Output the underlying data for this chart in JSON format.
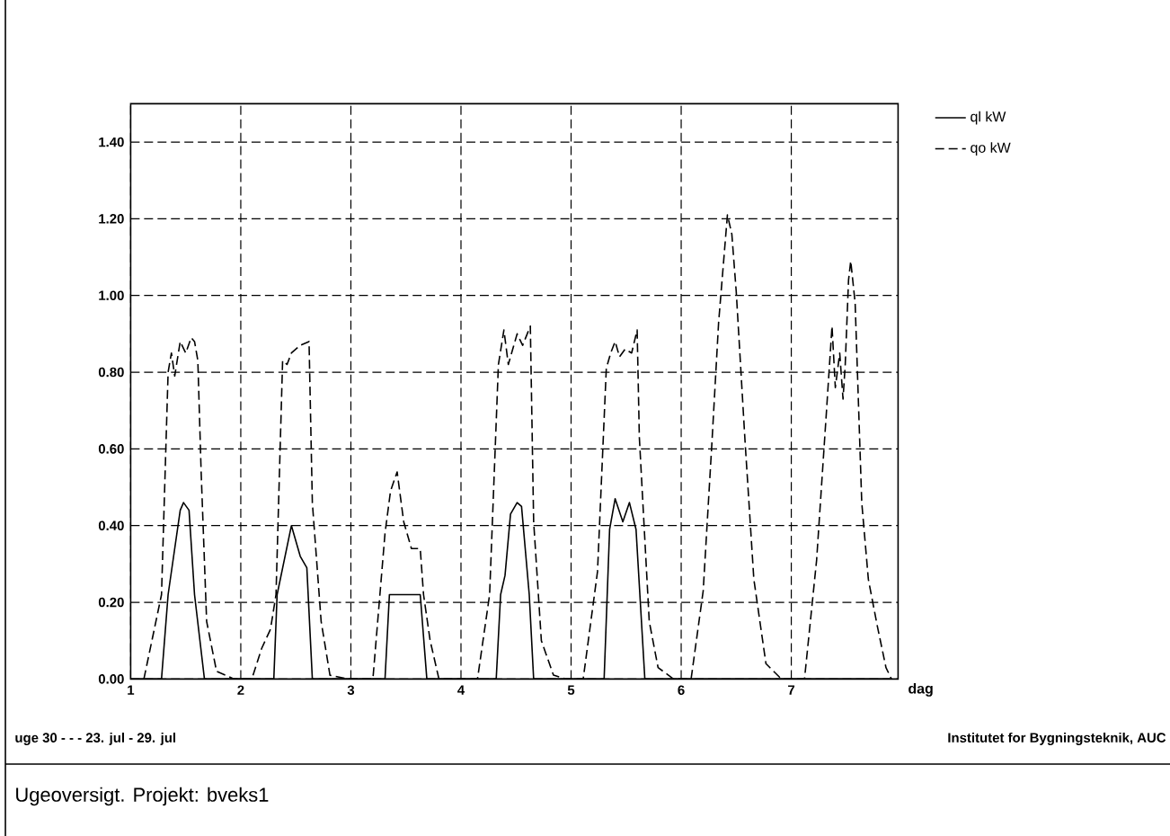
{
  "chart_data": {
    "type": "line",
    "title": "Ugeoversigt. Projekt: bveks1",
    "xlabel": "dag",
    "annotations": [
      "uge 30 - - - 23. jul - 29. jul",
      "Institutet for Bygningsteknik, AUC"
    ],
    "xlim": [
      1,
      7.97
    ],
    "ylim": [
      0,
      1.5
    ],
    "xticks": [
      1,
      2,
      3,
      4,
      5,
      6,
      7
    ],
    "yticks": [
      {
        "value": 0,
        "label": "0.00"
      },
      {
        "value": 0.2,
        "label": "0.20"
      },
      {
        "value": 0.4,
        "label": "0.40"
      },
      {
        "value": 0.6,
        "label": "0.60"
      },
      {
        "value": 0.8,
        "label": "0.80"
      },
      {
        "value": 1.0,
        "label": "1.00"
      },
      {
        "value": 1.2,
        "label": "1.20"
      },
      {
        "value": 1.4,
        "label": "1.40"
      }
    ],
    "grid": true,
    "legend": "top right",
    "marker": "none",
    "series": [
      {
        "name": "ql kW",
        "color": "#000000",
        "line_style": "solid",
        "x": [
          1.0,
          1.28,
          1.34,
          1.45,
          1.48,
          1.53,
          1.58,
          1.67,
          2.3,
          2.33,
          2.46,
          2.54,
          2.6,
          2.65,
          3.31,
          3.35,
          3.63,
          3.69,
          4.32,
          4.36,
          4.4,
          4.45,
          4.51,
          4.55,
          4.62,
          4.66,
          5.3,
          5.35,
          5.4,
          5.47,
          5.53,
          5.59,
          5.67,
          7.9
        ],
        "values": [
          0,
          0,
          0.22,
          0.44,
          0.46,
          0.44,
          0.22,
          0,
          0,
          0.22,
          0.4,
          0.32,
          0.29,
          0,
          0,
          0.22,
          0.22,
          0,
          0,
          0.22,
          0.27,
          0.43,
          0.46,
          0.45,
          0.22,
          0,
          0,
          0.39,
          0.47,
          0.41,
          0.46,
          0.39,
          0,
          0
        ]
      },
      {
        "name": "qo kW",
        "color": "#000000",
        "line_style": "dashed",
        "x": [
          1.12,
          1.28,
          1.34,
          1.37,
          1.4,
          1.45,
          1.5,
          1.55,
          1.58,
          1.61,
          1.64,
          1.69,
          1.78,
          1.94,
          2.1,
          2.19,
          2.27,
          2.32,
          2.38,
          2.42,
          2.46,
          2.54,
          2.62,
          2.65,
          2.73,
          2.81,
          2.98,
          3.2,
          3.31,
          3.36,
          3.42,
          3.48,
          3.55,
          3.63,
          3.66,
          3.72,
          3.8,
          4.15,
          4.26,
          4.34,
          4.39,
          4.43,
          4.51,
          4.56,
          4.63,
          4.66,
          4.73,
          4.84,
          4.95,
          5.11,
          5.24,
          5.32,
          5.36,
          5.4,
          5.44,
          5.49,
          5.55,
          5.6,
          5.62,
          5.71,
          5.79,
          5.93,
          6.09,
          6.2,
          6.28,
          6.34,
          6.42,
          6.46,
          6.5,
          6.58,
          6.66,
          6.77,
          6.91,
          7.12,
          7.23,
          7.32,
          7.37,
          7.4,
          7.44,
          7.47,
          7.49,
          7.52,
          7.54,
          7.58,
          7.64,
          7.7,
          7.78,
          7.86,
          7.91
        ],
        "values": [
          0,
          0.22,
          0.8,
          0.85,
          0.79,
          0.88,
          0.85,
          0.89,
          0.88,
          0.83,
          0.54,
          0.15,
          0.02,
          0,
          0,
          0.08,
          0.13,
          0.22,
          0.83,
          0.82,
          0.85,
          0.87,
          0.88,
          0.46,
          0.15,
          0.01,
          0,
          0,
          0.38,
          0.49,
          0.54,
          0.41,
          0.34,
          0.34,
          0.22,
          0.1,
          0,
          0,
          0.22,
          0.82,
          0.91,
          0.82,
          0.9,
          0.87,
          0.92,
          0.41,
          0.1,
          0.01,
          0,
          0,
          0.28,
          0.81,
          0.85,
          0.88,
          0.84,
          0.86,
          0.85,
          0.91,
          0.63,
          0.15,
          0.03,
          0,
          0,
          0.23,
          0.62,
          0.93,
          1.21,
          1.16,
          1.01,
          0.62,
          0.26,
          0.04,
          0,
          0,
          0.31,
          0.7,
          0.92,
          0.76,
          0.85,
          0.73,
          0.82,
          1.04,
          1.09,
          0.98,
          0.46,
          0.26,
          0.14,
          0.03,
          0
        ]
      }
    ]
  }
}
